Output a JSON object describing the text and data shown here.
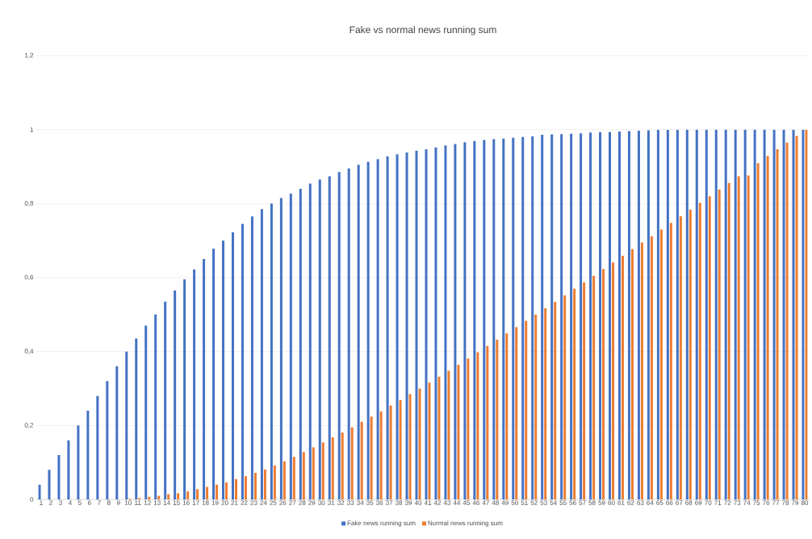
{
  "chart_data": {
    "type": "bar",
    "title": "Fake vs normal news running sum",
    "categories": [
      "1",
      "2",
      "3",
      "4",
      "5",
      "6",
      "7",
      "8",
      "9",
      "10",
      "11",
      "12",
      "13",
      "14",
      "15",
      "16",
      "17",
      "18",
      "19",
      "20",
      "21",
      "22",
      "23",
      "24",
      "25",
      "26",
      "27",
      "28",
      "29",
      "30",
      "31",
      "32",
      "33",
      "34",
      "35",
      "36",
      "37",
      "38",
      "39",
      "40",
      "41",
      "42",
      "43",
      "44",
      "45",
      "46",
      "47",
      "48",
      "49",
      "50",
      "51",
      "52",
      "53",
      "54",
      "55",
      "56",
      "57",
      "58",
      "59",
      "60",
      "61",
      "62",
      "63",
      "64",
      "65",
      "66",
      "67",
      "68",
      "69",
      "70",
      "71",
      "72",
      "73",
      "74",
      "75",
      "76",
      "77",
      "78",
      "79",
      "80"
    ],
    "series": [
      {
        "name": "Fake news running sum",
        "color": "#4472c4",
        "values": [
          0.04,
          0.08,
          0.12,
          0.16,
          0.2,
          0.24,
          0.28,
          0.32,
          0.36,
          0.4,
          0.435,
          0.47,
          0.5,
          0.535,
          0.565,
          0.595,
          0.622,
          0.65,
          0.678,
          0.7,
          0.722,
          0.745,
          0.765,
          0.785,
          0.8,
          0.815,
          0.827,
          0.84,
          0.854,
          0.865,
          0.874,
          0.885,
          0.895,
          0.905,
          0.913,
          0.92,
          0.928,
          0.933,
          0.938,
          0.943,
          0.947,
          0.952,
          0.957,
          0.961,
          0.966,
          0.969,
          0.972,
          0.974,
          0.976,
          0.978,
          0.98,
          0.982,
          0.986,
          0.987,
          0.988,
          0.989,
          0.99,
          0.992,
          0.993,
          0.994,
          0.995,
          0.996,
          0.997,
          0.998,
          0.999,
          0.999,
          0.999,
          1,
          1,
          1,
          1,
          1,
          1,
          1,
          1,
          1,
          1,
          1,
          1,
          1
        ]
      },
      {
        "name": "Normal news running sum",
        "color": "#ed7d31",
        "values": [
          0,
          0,
          0,
          0,
          0,
          0,
          0,
          0,
          0,
          0.002,
          0.004,
          0.007,
          0.01,
          0.014,
          0.017,
          0.022,
          0.028,
          0.034,
          0.04,
          0.046,
          0.055,
          0.063,
          0.072,
          0.081,
          0.092,
          0.103,
          0.115,
          0.128,
          0.141,
          0.154,
          0.168,
          0.181,
          0.195,
          0.21,
          0.224,
          0.238,
          0.254,
          0.269,
          0.285,
          0.3,
          0.316,
          0.332,
          0.348,
          0.364,
          0.381,
          0.398,
          0.415,
          0.432,
          0.449,
          0.466,
          0.483,
          0.5,
          0.517,
          0.534,
          0.552,
          0.57,
          0.587,
          0.605,
          0.623,
          0.641,
          0.659,
          0.677,
          0.695,
          0.712,
          0.73,
          0.748,
          0.766,
          0.784,
          0.802,
          0.82,
          0.838,
          0.856,
          0.874,
          0.876,
          0.909,
          0.929,
          0.947,
          0.965,
          0.983,
          1
        ]
      }
    ],
    "ylim": [
      0,
      1.2
    ],
    "yticks": [
      0,
      {
        "value": 0.2,
        "label": "0,2"
      },
      {
        "value": 0.4,
        "label": "0,4"
      },
      {
        "value": 0.6,
        "label": "0,6"
      },
      {
        "value": 0.8,
        "label": "0,8"
      },
      1,
      {
        "value": 1.2,
        "label": "1,2"
      }
    ],
    "grid": "y",
    "legend": "bottom"
  }
}
